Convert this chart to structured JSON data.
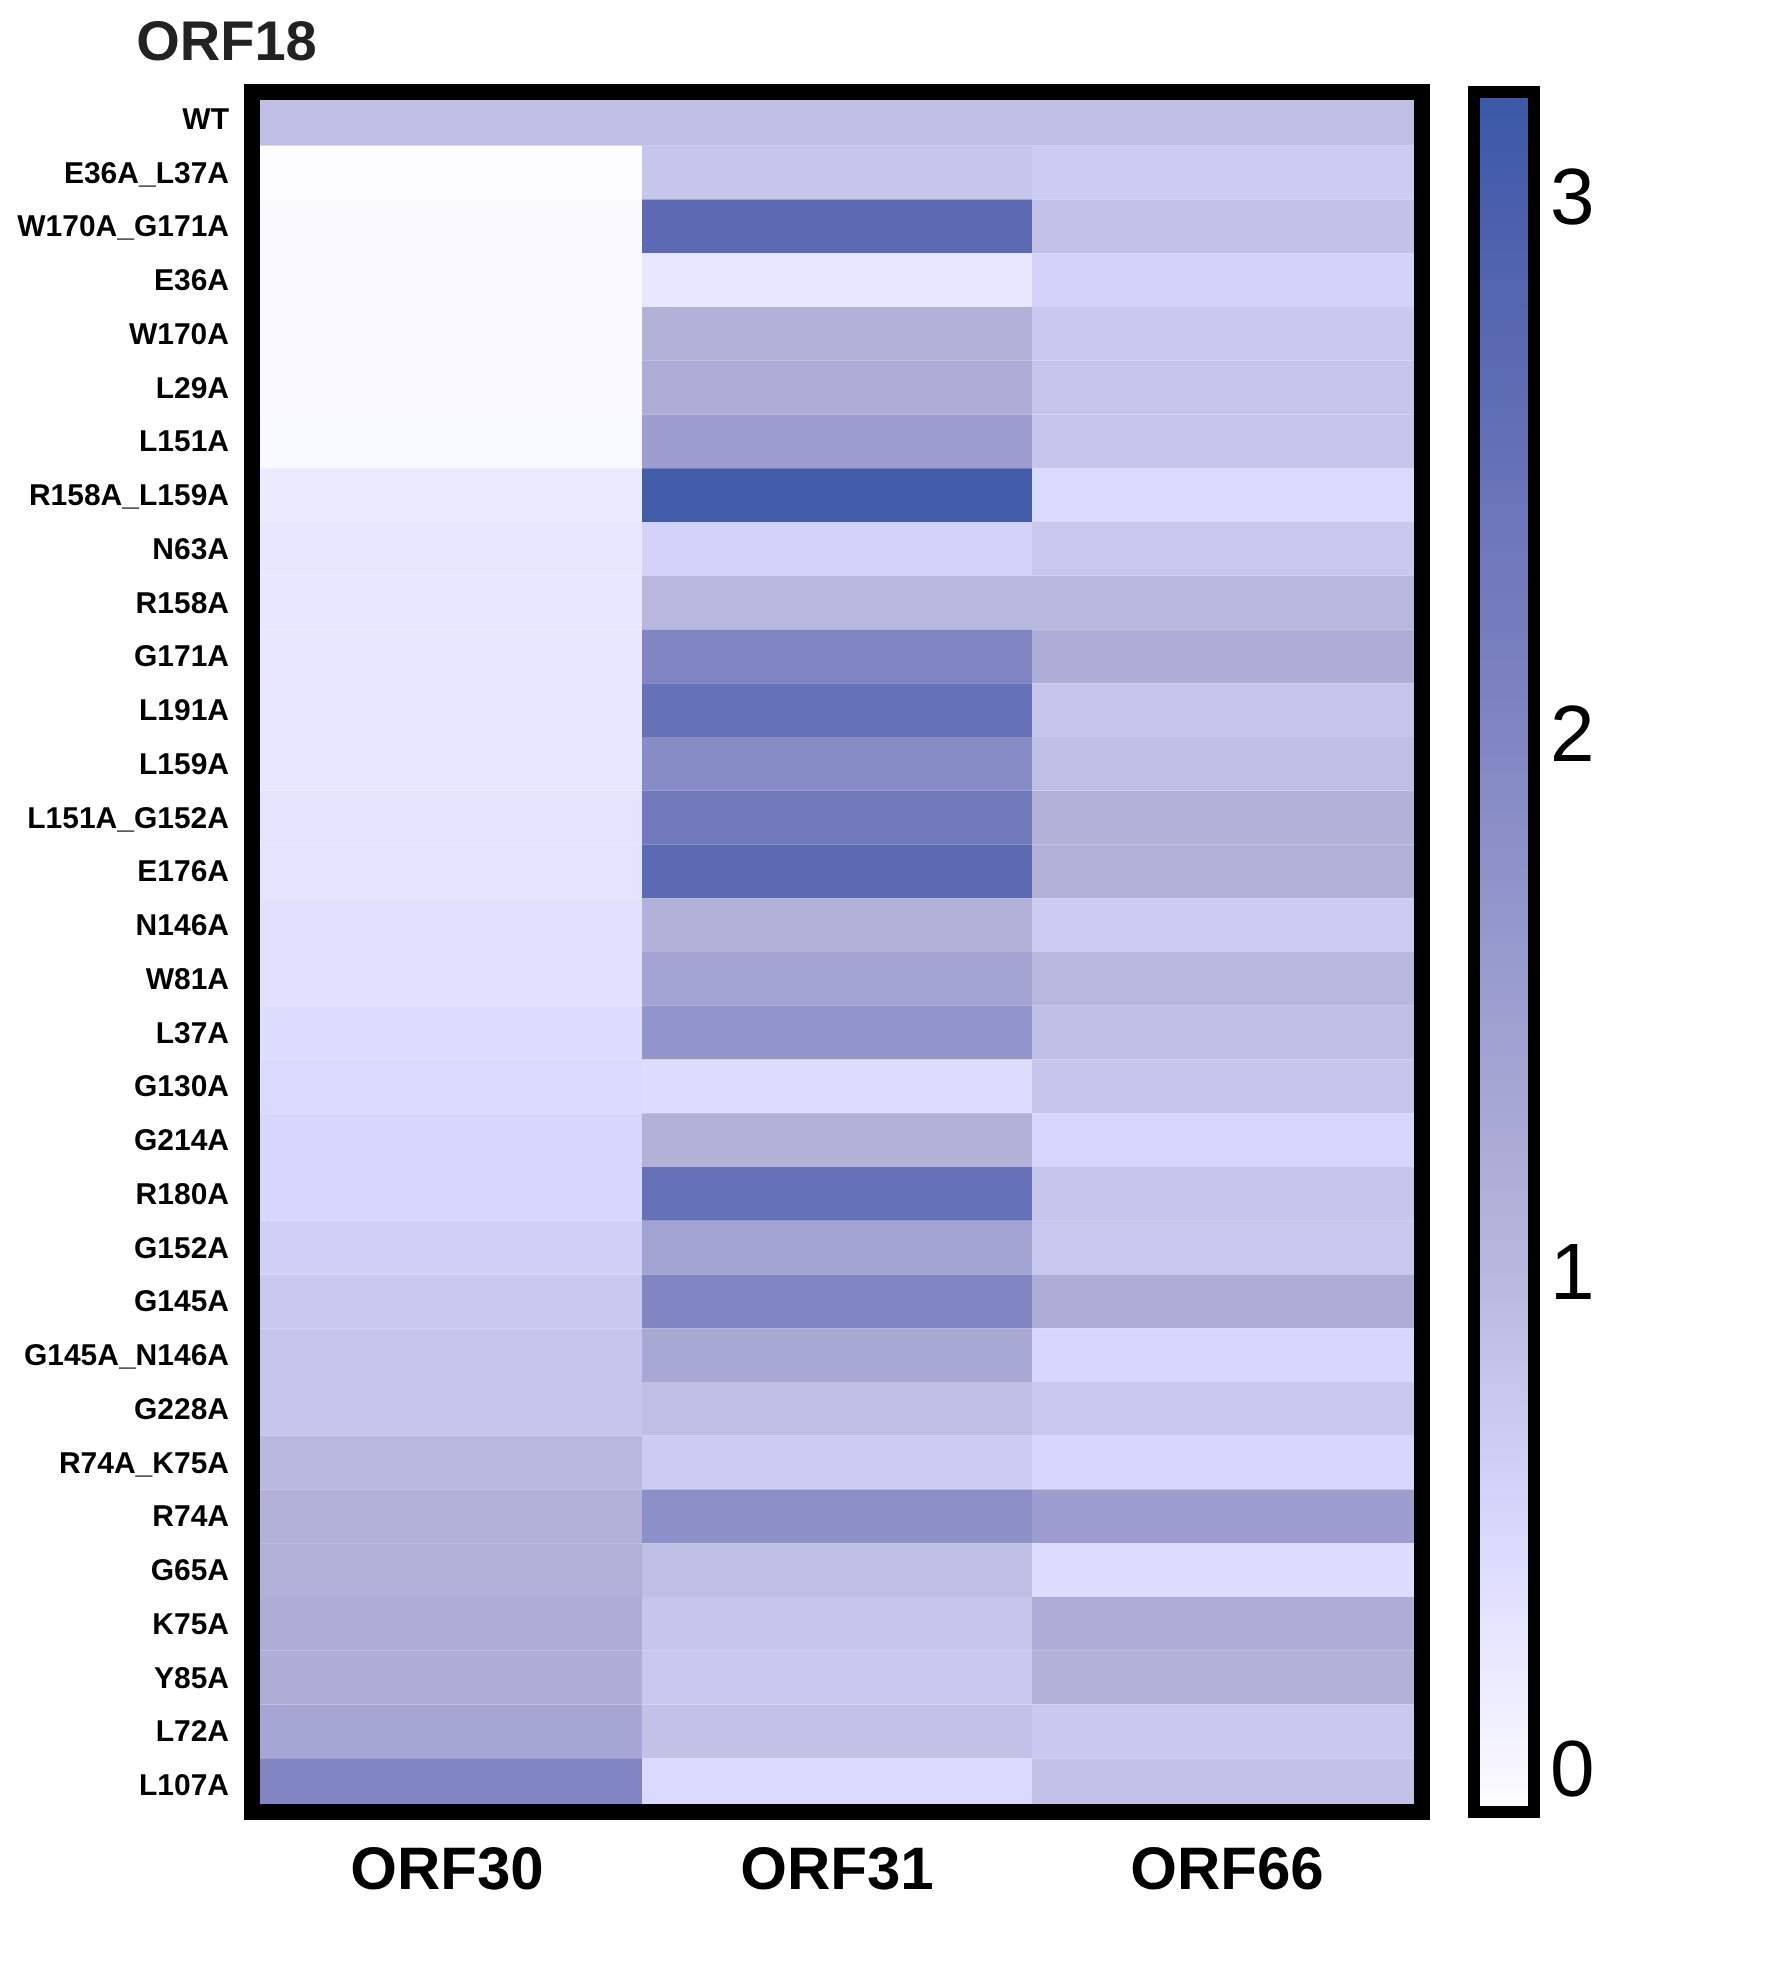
{
  "chart_data": {
    "type": "heatmap",
    "title": "ORF18",
    "categories": [
      "ORF30",
      "ORF31",
      "ORF66"
    ],
    "y_categories": [
      "WT",
      "E36A_L37A",
      "W170A_G171A",
      "E36A",
      "W170A",
      "L29A",
      "L151A",
      "R158A_L159A",
      "N63A",
      "R158A",
      "G171A",
      "L191A",
      "L159A",
      "L151A_G152A",
      "E176A",
      "N146A",
      "W81A",
      "L37A",
      "G130A",
      "G214A",
      "R180A",
      "G152A",
      "G145A",
      "G145A_N146A",
      "G228A",
      "R74A_K75A",
      "R74A",
      "G65A",
      "K75A",
      "Y85A",
      "L72A",
      "L107A"
    ],
    "cells": [
      [
        0.9,
        0.9,
        0.9
      ],
      [
        0.0,
        0.8,
        0.7
      ],
      [
        0.02,
        2.7,
        0.85
      ],
      [
        0.03,
        0.3,
        0.6
      ],
      [
        0.03,
        1.1,
        0.75
      ],
      [
        0.05,
        1.2,
        0.8
      ],
      [
        0.06,
        1.5,
        0.8
      ],
      [
        0.25,
        3.1,
        0.5
      ],
      [
        0.3,
        0.6,
        0.75
      ],
      [
        0.3,
        1.0,
        1.0
      ],
      [
        0.3,
        2.0,
        1.2
      ],
      [
        0.3,
        2.5,
        0.8
      ],
      [
        0.3,
        1.9,
        0.9
      ],
      [
        0.35,
        2.3,
        1.1
      ],
      [
        0.35,
        2.7,
        1.1
      ],
      [
        0.4,
        1.1,
        0.7
      ],
      [
        0.4,
        1.4,
        1.0
      ],
      [
        0.45,
        1.7,
        0.9
      ],
      [
        0.5,
        0.45,
        0.8
      ],
      [
        0.55,
        1.1,
        0.55
      ],
      [
        0.55,
        2.5,
        0.8
      ],
      [
        0.65,
        1.4,
        0.75
      ],
      [
        0.75,
        2.0,
        1.2
      ],
      [
        0.8,
        1.3,
        0.55
      ],
      [
        0.8,
        0.9,
        0.75
      ],
      [
        1.0,
        0.7,
        0.55
      ],
      [
        1.1,
        1.8,
        1.5
      ],
      [
        1.15,
        0.9,
        0.45
      ],
      [
        1.2,
        0.8,
        1.2
      ],
      [
        1.2,
        0.75,
        1.1
      ],
      [
        1.35,
        0.85,
        0.75
      ],
      [
        2.0,
        0.5,
        0.85
      ]
    ],
    "clim": [
      0,
      3.2
    ],
    "cticks": [
      0,
      1,
      2,
      3
    ]
  }
}
